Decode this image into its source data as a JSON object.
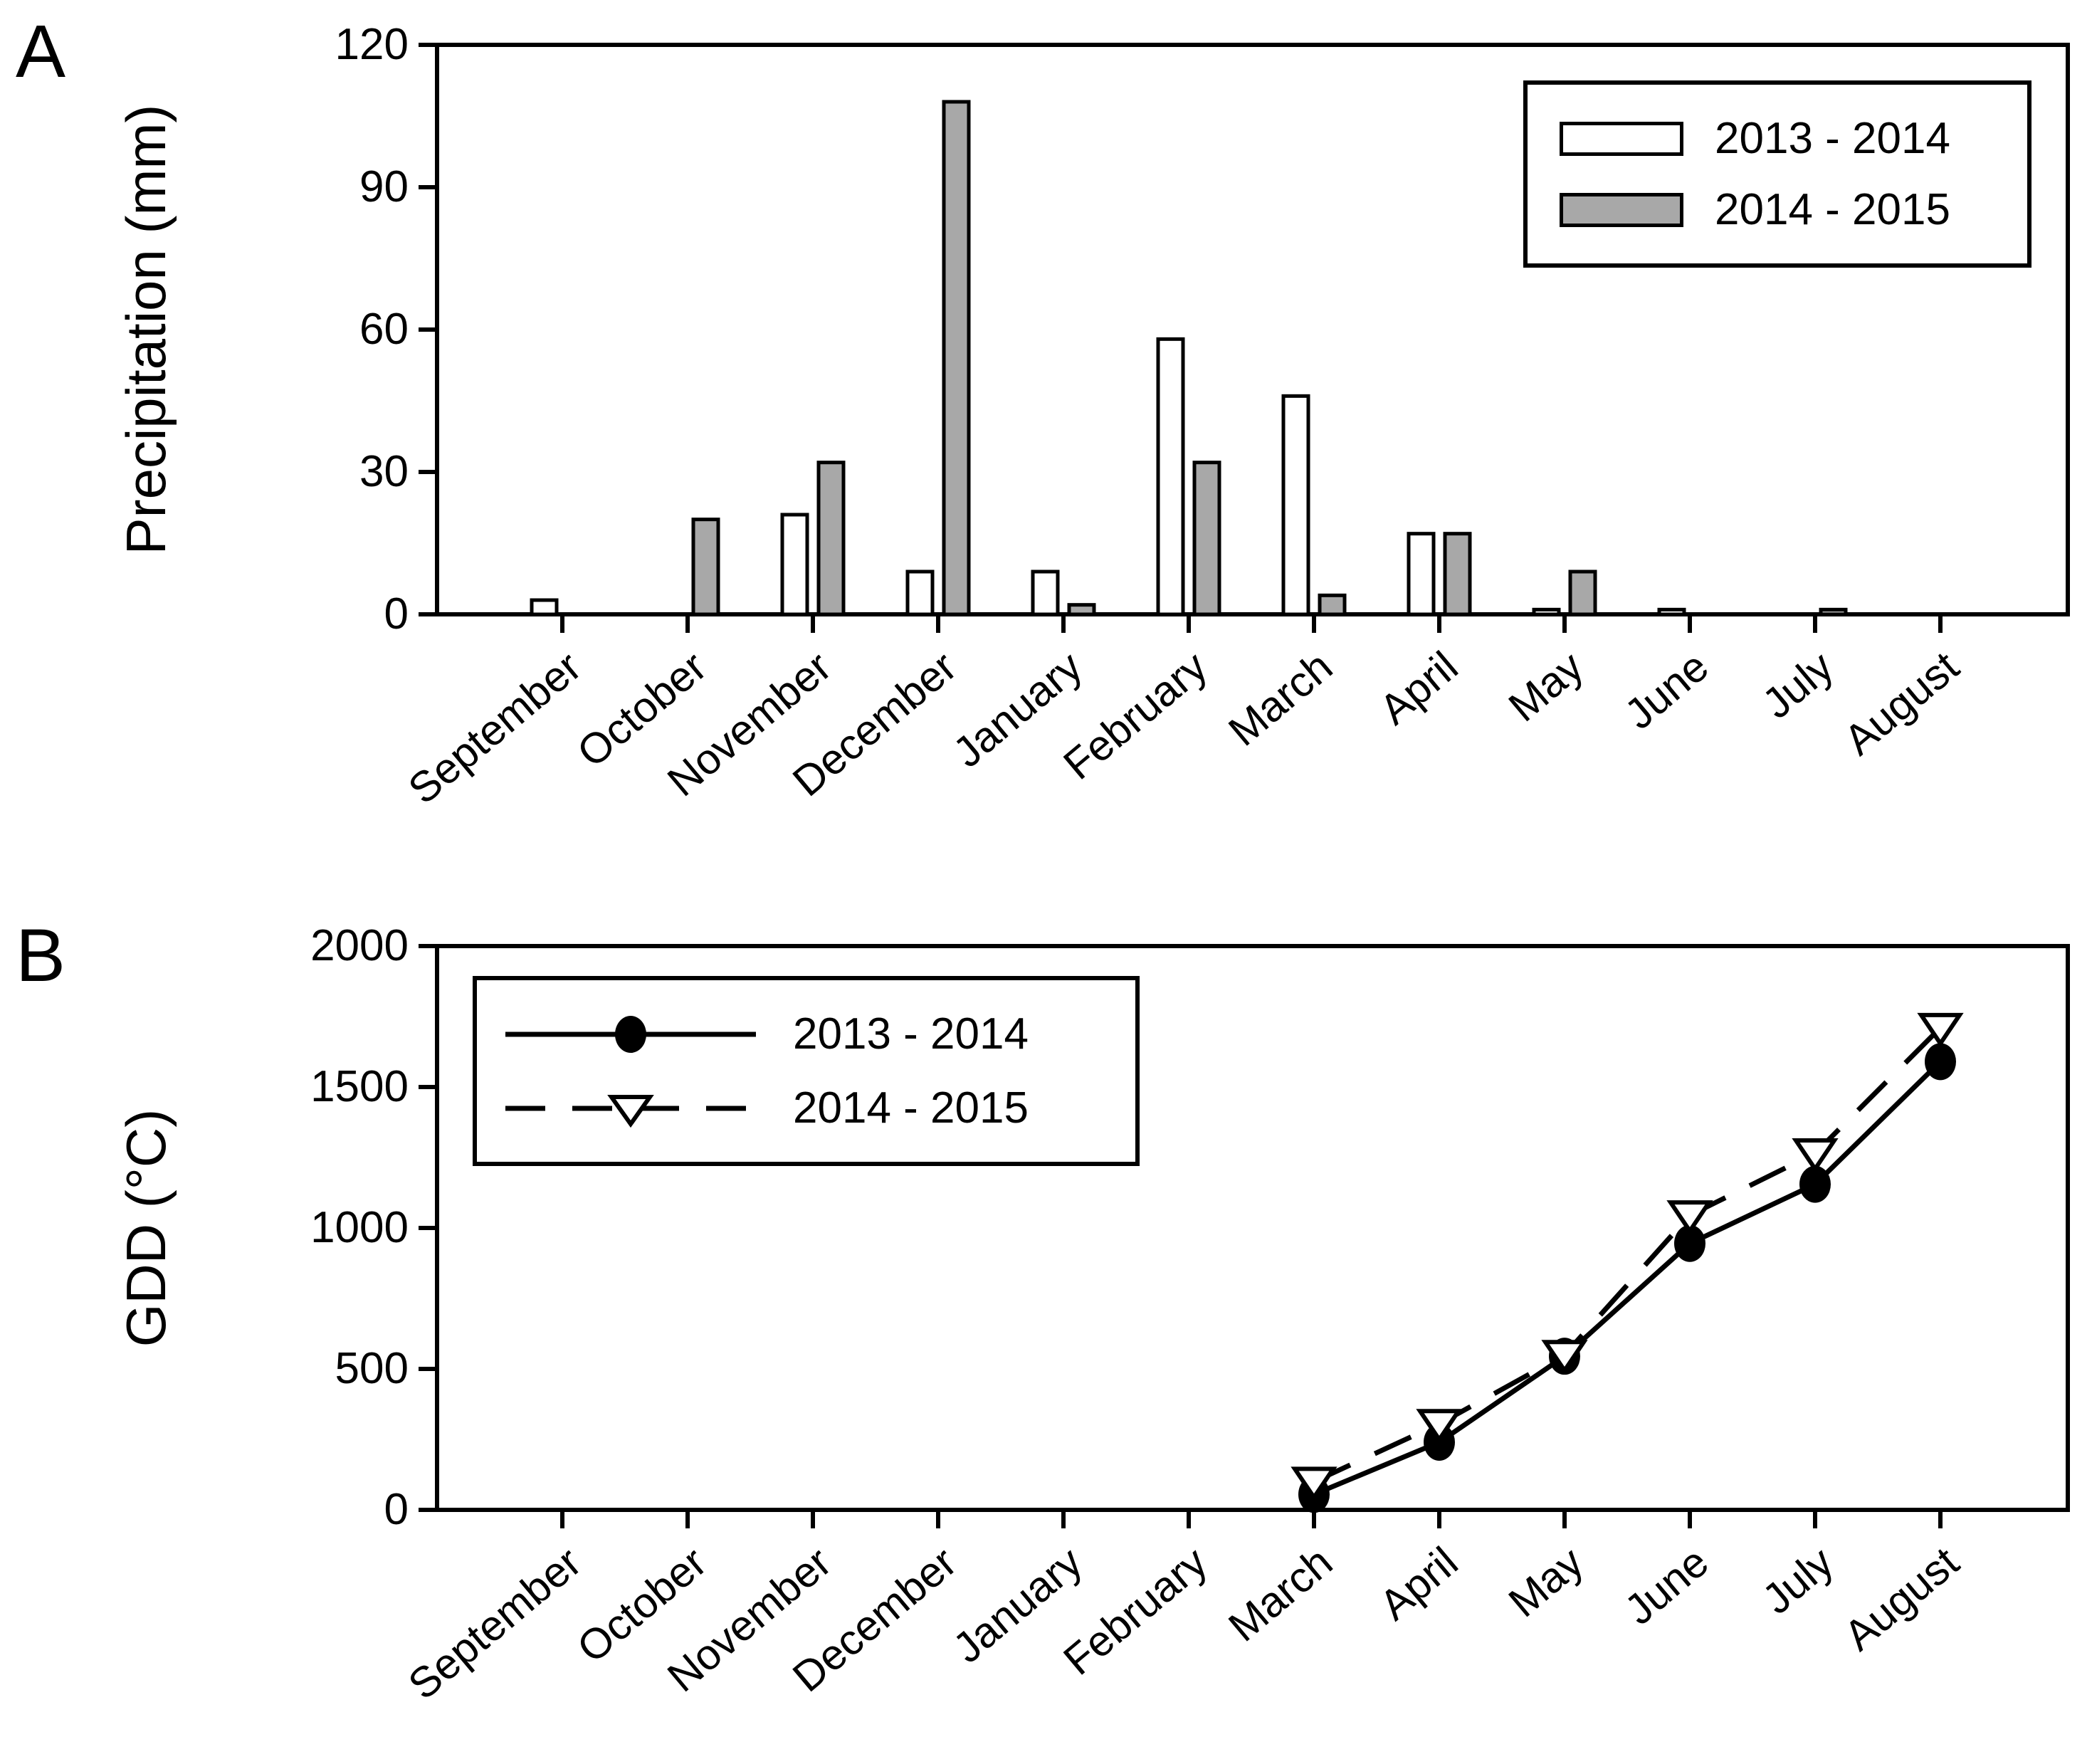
{
  "panel_a": {
    "label": "A",
    "ylabel": "Precipitation (mm)",
    "legend": {
      "position": "top-right",
      "items": [
        {
          "label": "2013 - 2014",
          "swatch": "white-rect",
          "swatch_color": "#ffffff"
        },
        {
          "label": "2014 - 2015",
          "swatch": "gray-rect",
          "swatch_color": "#a8a8a8"
        }
      ]
    }
  },
  "panel_b": {
    "label": "B",
    "ylabel": "GDD (°C)",
    "legend": {
      "position": "top-left",
      "items": [
        {
          "label": "2013 - 2014",
          "marker": "filled-circle",
          "line_style": "solid"
        },
        {
          "label": "2014 - 2015",
          "marker": "open-triangle-down",
          "line_style": "dashed"
        }
      ]
    }
  },
  "colors": {
    "ink": "#000000",
    "bar_gray": "#a8a8a8",
    "background": "#ffffff"
  },
  "chart_data": [
    {
      "type": "bar",
      "panel": "A",
      "title": "",
      "xlabel": "",
      "ylabel": "Precipitation (mm)",
      "categories": [
        "September",
        "October",
        "November",
        "December",
        "January",
        "February",
        "March",
        "April",
        "May",
        "June",
        "July",
        "August"
      ],
      "series": [
        {
          "name": "2013 - 2014",
          "fill": "#ffffff",
          "values": [
            3,
            0,
            21,
            9,
            9,
            58,
            46,
            17,
            1,
            1,
            0,
            0
          ]
        },
        {
          "name": "2014 - 2015",
          "fill": "#a8a8a8",
          "values": [
            0,
            20,
            32,
            108,
            2,
            32,
            4,
            17,
            9,
            0,
            1,
            0
          ]
        }
      ],
      "ylim": [
        0,
        120
      ],
      "yticks": [
        0,
        30,
        60,
        90,
        120
      ],
      "grid": false,
      "legend_position": "top-right"
    },
    {
      "type": "line",
      "panel": "B",
      "title": "",
      "xlabel": "",
      "ylabel": "GDD (°C)",
      "categories": [
        "September",
        "October",
        "November",
        "December",
        "January",
        "February",
        "March",
        "April",
        "May",
        "June",
        "July",
        "August"
      ],
      "series": [
        {
          "name": "2013 - 2014",
          "marker": "filled-circle",
          "line_style": "solid",
          "values": [
            null,
            null,
            null,
            null,
            null,
            null,
            55,
            240,
            545,
            945,
            1155,
            1590
          ]
        },
        {
          "name": "2014 - 2015",
          "marker": "open-triangle-down",
          "line_style": "dashed",
          "values": [
            null,
            null,
            null,
            null,
            null,
            null,
            100,
            305,
            550,
            1045,
            1265,
            1710
          ]
        }
      ],
      "ylim": [
        0,
        2000
      ],
      "yticks": [
        0,
        500,
        1000,
        1500,
        2000
      ],
      "grid": false,
      "legend_position": "top-left"
    }
  ]
}
